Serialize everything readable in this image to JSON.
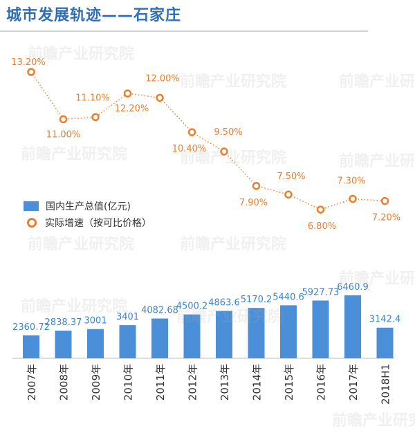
{
  "title": "城市发展轨迹——石家庄",
  "watermark": "前瞻产业研究院",
  "legend": {
    "gdp": "国内生产总值(亿元)",
    "growth": "实际增速（按可比价格）"
  },
  "colors": {
    "bar": "#4a8fd8",
    "line": "#ec7e2a",
    "bar_label": "#3b84cf",
    "title": "#2f6fb6"
  },
  "chart_data": [
    {
      "type": "line",
      "series": [
        {
          "name": "实际增速（按可比价格）",
          "values": [
            13.2,
            11.0,
            11.1,
            12.2,
            12.0,
            10.4,
            9.5,
            7.9,
            7.5,
            6.8,
            7.3,
            7.2
          ]
        }
      ],
      "labels": [
        "13.20%",
        "11.00%",
        "11.10%",
        "12.20%",
        "12.00%",
        "10.40%",
        "9.50%",
        "7.90%",
        "7.50%",
        "6.80%",
        "7.30%",
        "7.20%"
      ],
      "categories": [
        "2007年",
        "2008年",
        "2009年",
        "2010年",
        "2011年",
        "2012年",
        "2013年",
        "2014年",
        "2015年",
        "2016年",
        "2017年",
        "2018H1"
      ],
      "ylim": [
        5.7,
        14.0
      ],
      "style": "dotted line with hollow circle markers"
    },
    {
      "type": "bar",
      "categories": [
        "2007年",
        "2008年",
        "2009年",
        "2010年",
        "2011年",
        "2012年",
        "2013年",
        "2014年",
        "2015年",
        "2016年",
        "2017年",
        "2018H1"
      ],
      "series": [
        {
          "name": "国内生产总值(亿元)",
          "values": [
            2360.7,
            2838.37,
            3001,
            3401,
            4082.68,
            4500.2,
            4863.6,
            5170.2,
            5440.6,
            5927.73,
            6460.9,
            3142.4
          ]
        }
      ],
      "labels": [
        "2360.72",
        "2838.37",
        "3001",
        "3401",
        "4082.68",
        "4500.2",
        "4863.6",
        "5170.2",
        "5440.6",
        "5927.73",
        "6460.9",
        "3142.4"
      ],
      "ylim": [
        0,
        7100
      ]
    }
  ]
}
